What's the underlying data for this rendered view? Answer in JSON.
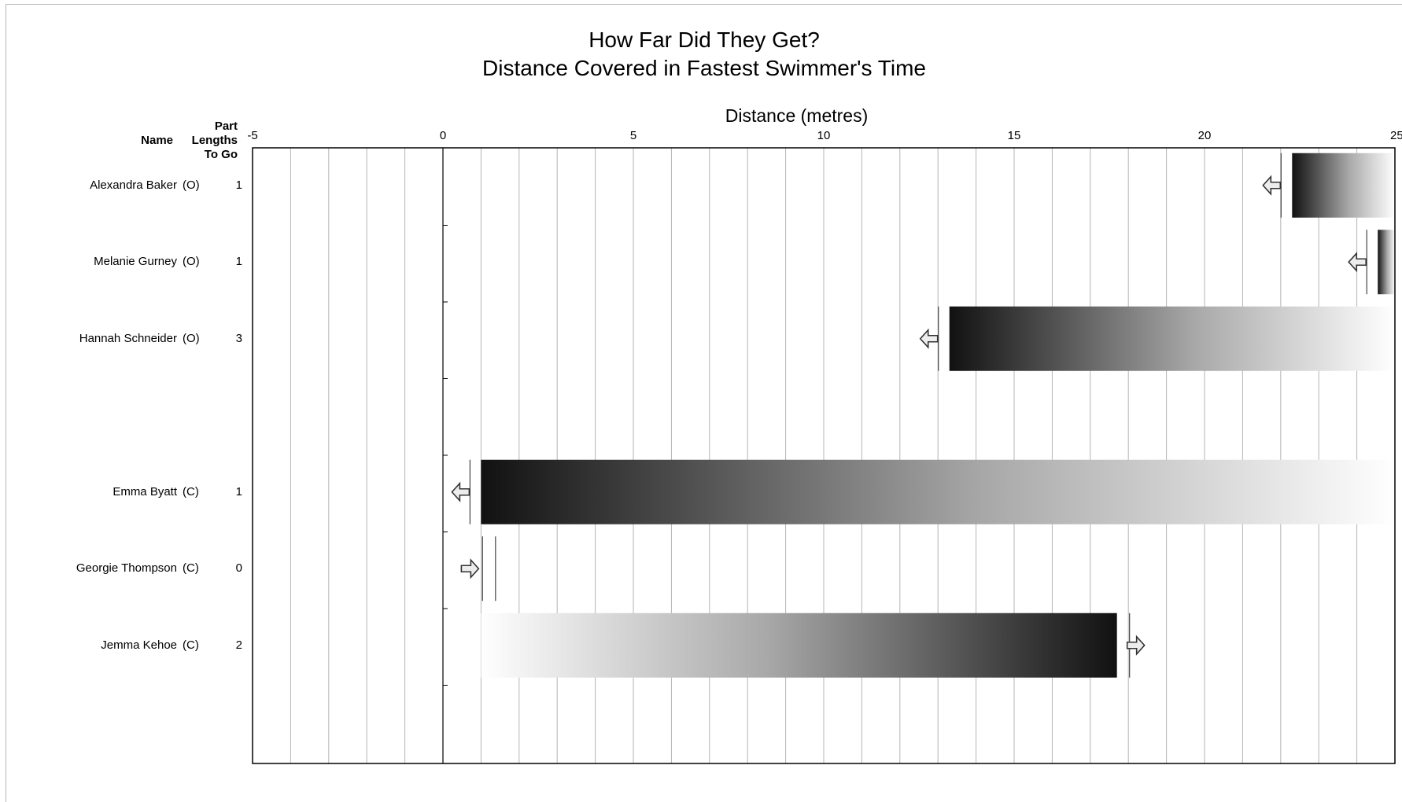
{
  "chart_data": {
    "type": "bar",
    "title": "How Far Did They Get?",
    "subtitle": "Distance Covered in Fastest Swimmer's Time",
    "xlabel": "Distance (metres)",
    "xlim": [
      -5,
      25
    ],
    "x_ticks": [
      "-5",
      "0",
      "5",
      "10",
      "15",
      "20",
      "25"
    ],
    "grid": true,
    "column_headers": {
      "name": "Name",
      "part_lengths": "Part\nLengths\nTo Go"
    },
    "rows": [
      {
        "name": "Alexandra Baker",
        "team": "(O)",
        "part_lengths_to_go": "1",
        "start": 22.3,
        "end": 25,
        "direction": "left",
        "slot": 0
      },
      {
        "name": "Melanie Gurney",
        "team": "(O)",
        "part_lengths_to_go": "1",
        "start": 24.55,
        "end": 25,
        "direction": "left",
        "slot": 1
      },
      {
        "name": "Hannah Schneider",
        "team": "(O)",
        "part_lengths_to_go": "3",
        "start": 13.3,
        "end": 25,
        "direction": "left",
        "slot": 2
      },
      {
        "name": "Emma Byatt",
        "team": "(C)",
        "part_lengths_to_go": "1",
        "start": 1.0,
        "end": 25,
        "direction": "left",
        "slot": 4
      },
      {
        "name": "Georgie Thompson",
        "team": "(C)",
        "part_lengths_to_go": "0",
        "start": 1.0,
        "end": 1.05,
        "direction": "right",
        "slot": 5
      },
      {
        "name": "Jemma Kehoe",
        "team": "(C)",
        "part_lengths_to_go": "2",
        "start": 1.0,
        "end": 17.7,
        "direction": "right",
        "slot": 6
      }
    ]
  }
}
